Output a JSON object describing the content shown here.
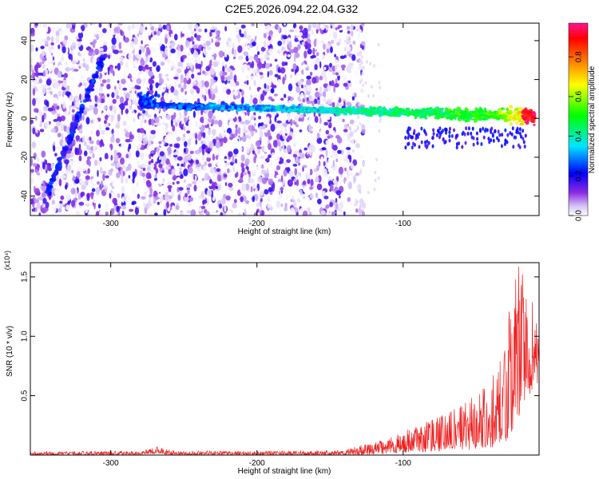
{
  "title": "C2E5.2026.094.22.04.G32",
  "chart_data": [
    {
      "type": "heatmap",
      "xlabel": "Height of straight line (km)",
      "ylabel": "Frequency (Hz)",
      "xlim": [
        -355,
        -7
      ],
      "ylim": [
        -50,
        49
      ],
      "xticks": [
        -300,
        -200,
        -100
      ],
      "yticks": [
        -40,
        -20,
        0,
        20,
        40
      ],
      "colorbar": {
        "label": "Normalized spectral amplitude",
        "range": [
          0,
          0.97
        ],
        "ticks": [
          "0.0",
          "0.2",
          "0.4",
          "0.6",
          "0.8"
        ],
        "tick_values": [
          0,
          0.2,
          0.4,
          0.6,
          0.8
        ],
        "colors": [
          "#ffffff",
          "#d4c2f7",
          "#8a2be2",
          "#0000ff",
          "#00e5ff",
          "#00ff00",
          "#ffff00",
          "#ff8000",
          "#ff0000",
          "#ff1493"
        ]
      },
      "features": [
        {
          "name": "diagonal streak",
          "x": [
            -343,
            -305
          ],
          "y": [
            -38,
            32
          ]
        },
        {
          "name": "carrier trace",
          "x": [
            -280,
            -10
          ],
          "y": [
            7,
            1
          ]
        },
        {
          "name": "noise band edge",
          "x": -135
        }
      ]
    },
    {
      "type": "line",
      "xlabel": "Height of straight line (km)",
      "ylabel": "SNR (10 * v/v)",
      "scale_note": "(x10⁴)",
      "xlim": [
        -355,
        -7
      ],
      "ylim": [
        0,
        1.62
      ],
      "xticks": [
        -300,
        -200,
        -100
      ],
      "yticks": [
        "0.5",
        "1.0",
        "1.5"
      ],
      "ytick_values": [
        0.5,
        1.0,
        1.5
      ],
      "color": "#ee2222",
      "envelope": {
        "x": [
          -355,
          -280,
          -268,
          -255,
          -200,
          -140,
          -130,
          -115,
          -100,
          -80,
          -60,
          -40,
          -30,
          -25,
          -20,
          -15,
          -10,
          -7
        ],
        "max": [
          0.03,
          0.035,
          0.07,
          0.035,
          0.035,
          0.04,
          0.08,
          0.12,
          0.2,
          0.3,
          0.42,
          0.62,
          0.95,
          1.45,
          1.62,
          1.35,
          1.3,
          1.2
        ],
        "min": [
          0.0,
          0.0,
          0.01,
          0.0,
          0.0,
          0.0,
          0.0,
          0.01,
          0.02,
          0.03,
          0.04,
          0.06,
          0.1,
          0.2,
          0.35,
          0.45,
          0.55,
          0.6
        ]
      }
    }
  ]
}
